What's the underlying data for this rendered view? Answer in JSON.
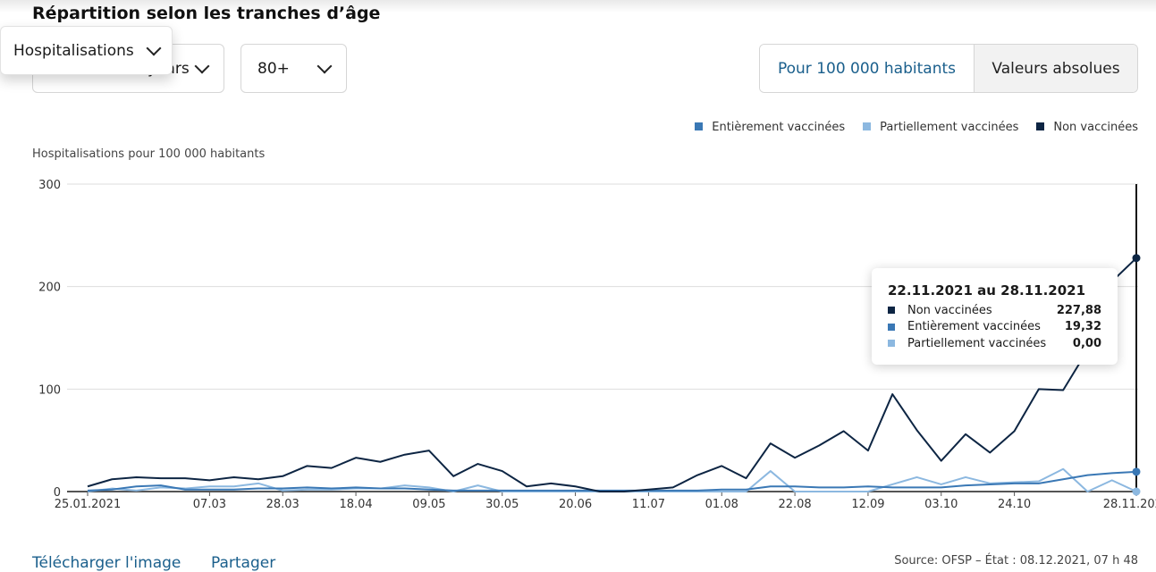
{
  "header": {
    "title": "Répartition selon les tranches d’âge"
  },
  "filters": {
    "metric": "Hospitalisations",
    "age_mode": "years",
    "age_group": "80+"
  },
  "toggle": {
    "per100k": "Pour 100 000 habitants",
    "absolute": "Valeurs absolues"
  },
  "tooltip": {
    "title": "22.11.2021 au 28.11.2021",
    "rows": [
      {
        "label": "Non vaccinées",
        "value": "227,88",
        "color": "#0d2543"
      },
      {
        "label": "Entièrement vaccinées",
        "value": "19,32",
        "color": "#3a78b5"
      },
      {
        "label": "Partiellement vaccinées",
        "value": "0,00",
        "color": "#8cb8e0"
      }
    ]
  },
  "footer": {
    "download": "Télécharger l'image",
    "share": "Partager",
    "source": "Source: OFSP – État : 08.12.2021, 07 h 48"
  },
  "chart_data": {
    "type": "line",
    "ylabel": "Hospitalisations pour 100 000 habitants",
    "ylim": [
      0,
      300
    ],
    "yticks": [
      "0",
      "100",
      "200",
      "300"
    ],
    "xticks": [
      {
        "i": 0,
        "label": "25.01.2021"
      },
      {
        "i": 5,
        "label": "07.03"
      },
      {
        "i": 8,
        "label": "28.03"
      },
      {
        "i": 11,
        "label": "18.04"
      },
      {
        "i": 14,
        "label": "09.05"
      },
      {
        "i": 17,
        "label": "30.05"
      },
      {
        "i": 20,
        "label": "20.06"
      },
      {
        "i": 23,
        "label": "11.07"
      },
      {
        "i": 26,
        "label": "01.08"
      },
      {
        "i": 29,
        "label": "22.08"
      },
      {
        "i": 32,
        "label": "12.09"
      },
      {
        "i": 35,
        "label": "03.10"
      },
      {
        "i": 38,
        "label": "24.10"
      },
      {
        "i": 43,
        "label": "28.11.2021"
      }
    ],
    "legend": [
      {
        "label": "Entièrement vaccinées",
        "color": "#3a78b5"
      },
      {
        "label": "Partiellement vaccinées",
        "color": "#8cb8e0"
      },
      {
        "label": "Non vaccinées",
        "color": "#0d2543"
      }
    ],
    "series": [
      {
        "name": "Partiellement vaccinées",
        "color": "#8cb8e0",
        "values": [
          0,
          3,
          1,
          4,
          3,
          5,
          5,
          8,
          1,
          2,
          2,
          3,
          3,
          6,
          4,
          0,
          6,
          0,
          0,
          0,
          0,
          0,
          0,
          0,
          0,
          0,
          0,
          0,
          20,
          0,
          0,
          0,
          0,
          7,
          14,
          7,
          14,
          8,
          9,
          10,
          22,
          0,
          11,
          0
        ]
      },
      {
        "name": "Entièrement vaccinées",
        "color": "#3a78b5",
        "values": [
          1,
          2,
          5,
          6,
          2,
          2,
          2,
          3,
          3,
          4,
          3,
          4,
          3,
          3,
          2,
          1,
          1,
          1,
          1,
          1,
          1,
          1,
          1,
          1,
          1,
          1,
          2,
          2,
          5,
          5,
          4,
          4,
          5,
          4,
          4,
          4,
          6,
          7,
          8,
          8,
          12,
          16,
          18,
          19.32
        ]
      },
      {
        "name": "Non vaccinées",
        "color": "#0d2543",
        "values": [
          5,
          12,
          14,
          13,
          13,
          11,
          14,
          12,
          15,
          25,
          23,
          33,
          29,
          36,
          40,
          15,
          27,
          20,
          5,
          8,
          5,
          0,
          0,
          2,
          4,
          16,
          25,
          13,
          47,
          33,
          45,
          59,
          40,
          95,
          60,
          30,
          56,
          38,
          59,
          100,
          99,
          138,
          205,
          227.88
        ]
      }
    ],
    "highlight_index": 43
  }
}
